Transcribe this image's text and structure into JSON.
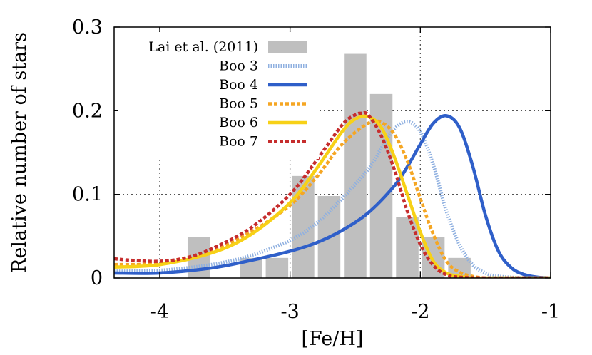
{
  "chart_data": {
    "type": "bar",
    "title": "",
    "xlabel": "[Fe/H]",
    "ylabel": "Relative number of stars",
    "xlim": [
      -4.35,
      -1.0
    ],
    "ylim": [
      0,
      0.3
    ],
    "x_ticks": [
      -4,
      -3,
      -2,
      -1
    ],
    "y_ticks": [
      0,
      0.1,
      0.2,
      0.3
    ],
    "x_tick_labels": [
      "-4",
      "-3",
      "-2",
      "-1"
    ],
    "y_tick_labels": [
      "0",
      "0.1",
      "0.2",
      "0.3"
    ],
    "grid": true,
    "legend_position": "top-left",
    "histogram": {
      "name": "Lai et al. (2011)",
      "color": "#bfbfbf",
      "bin_width": 0.2,
      "bins": [
        {
          "x0": -3.8,
          "x1": -3.6,
          "value": 0.049
        },
        {
          "x0": -3.4,
          "x1": -3.2,
          "value": 0.024
        },
        {
          "x0": -3.2,
          "x1": -3.0,
          "value": 0.024
        },
        {
          "x0": -3.0,
          "x1": -2.8,
          "value": 0.122
        },
        {
          "x0": -2.8,
          "x1": -2.6,
          "value": 0.098
        },
        {
          "x0": -2.6,
          "x1": -2.4,
          "value": 0.268
        },
        {
          "x0": -2.4,
          "x1": -2.2,
          "value": 0.22
        },
        {
          "x0": -2.2,
          "x1": -2.0,
          "value": 0.073
        },
        {
          "x0": -2.0,
          "x1": -1.8,
          "value": 0.049
        },
        {
          "x0": -1.8,
          "x1": -1.6,
          "value": 0.024
        }
      ]
    },
    "series": [
      {
        "name": "Boo 3",
        "color": "#8fb0e0",
        "style": "dotted",
        "x": [
          -4.35,
          -4.0,
          -3.6,
          -3.3,
          -3.0,
          -2.8,
          -2.6,
          -2.4,
          -2.3,
          -2.2,
          -2.1,
          -2.0,
          -1.9,
          -1.8,
          -1.7,
          -1.6,
          -1.5,
          -1.4,
          -1.2,
          -1.0
        ],
        "y": [
          0.008,
          0.009,
          0.016,
          0.027,
          0.045,
          0.065,
          0.095,
          0.13,
          0.155,
          0.178,
          0.187,
          0.175,
          0.135,
          0.08,
          0.04,
          0.016,
          0.006,
          0.002,
          0.0,
          0.0
        ]
      },
      {
        "name": "Boo 4",
        "color": "#2f5fc9",
        "style": "solid",
        "x": [
          -4.35,
          -4.0,
          -3.6,
          -3.3,
          -3.0,
          -2.8,
          -2.6,
          -2.4,
          -2.2,
          -2.1,
          -2.0,
          -1.9,
          -1.8,
          -1.7,
          -1.6,
          -1.5,
          -1.4,
          -1.3,
          -1.2,
          -1.1,
          -1.0
        ],
        "y": [
          0.006,
          0.006,
          0.012,
          0.021,
          0.032,
          0.042,
          0.057,
          0.078,
          0.11,
          0.133,
          0.16,
          0.185,
          0.194,
          0.18,
          0.135,
          0.075,
          0.032,
          0.012,
          0.004,
          0.001,
          0.0
        ]
      },
      {
        "name": "Boo 5",
        "color": "#f5a623",
        "style": "dashed",
        "x": [
          -4.35,
          -4.0,
          -3.6,
          -3.3,
          -3.0,
          -2.8,
          -2.6,
          -2.4,
          -2.3,
          -2.2,
          -2.1,
          -2.0,
          -1.9,
          -1.8,
          -1.7,
          -1.6,
          -1.5,
          -1.4,
          -1.2,
          -1.0
        ],
        "y": [
          0.016,
          0.018,
          0.033,
          0.055,
          0.087,
          0.12,
          0.16,
          0.185,
          0.186,
          0.172,
          0.14,
          0.095,
          0.052,
          0.02,
          0.007,
          0.002,
          0.0,
          0.0,
          0.0,
          0.0
        ]
      },
      {
        "name": "Boo 6",
        "color": "#f7d117",
        "style": "solid",
        "x": [
          -4.35,
          -4.0,
          -3.6,
          -3.3,
          -3.0,
          -2.8,
          -2.6,
          -2.5,
          -2.4,
          -2.3,
          -2.2,
          -2.1,
          -2.0,
          -1.9,
          -1.8,
          -1.7,
          -1.6,
          -1.5,
          -1.2,
          -1.0
        ],
        "y": [
          0.013,
          0.016,
          0.03,
          0.052,
          0.09,
          0.13,
          0.175,
          0.19,
          0.193,
          0.18,
          0.145,
          0.1,
          0.055,
          0.02,
          0.006,
          0.002,
          0.0,
          0.0,
          0.0,
          0.0
        ]
      },
      {
        "name": "Boo 7",
        "color": "#c62d2d",
        "style": "dashed",
        "x": [
          -4.35,
          -4.2,
          -4.0,
          -3.8,
          -3.6,
          -3.3,
          -3.0,
          -2.8,
          -2.6,
          -2.5,
          -2.45,
          -2.4,
          -2.3,
          -2.2,
          -2.1,
          -2.0,
          -1.9,
          -1.8,
          -1.7,
          -1.5,
          -1.2,
          -1.0
        ],
        "y": [
          0.023,
          0.021,
          0.02,
          0.024,
          0.035,
          0.06,
          0.1,
          0.14,
          0.183,
          0.195,
          0.197,
          0.195,
          0.17,
          0.13,
          0.08,
          0.04,
          0.015,
          0.004,
          0.001,
          0.0,
          0.0,
          0.0
        ]
      }
    ]
  }
}
